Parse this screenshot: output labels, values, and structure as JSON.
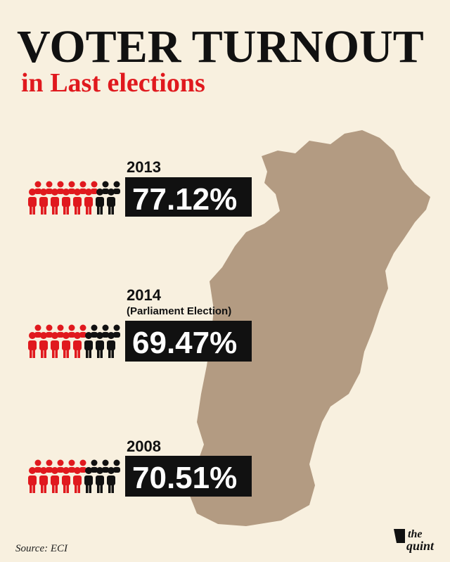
{
  "header": {
    "title": "VOTER TURNOUT",
    "subtitle": "in Last elections"
  },
  "items": [
    {
      "year": "2013",
      "value": "77.12%"
    },
    {
      "year": "2014",
      "note": "(Parliament Election)",
      "value": "69.47%"
    },
    {
      "year": "2008",
      "value": "70.51%"
    }
  ],
  "footer": {
    "source": "Source: ECI",
    "logo_top": "the",
    "logo_bottom": "quint"
  }
}
